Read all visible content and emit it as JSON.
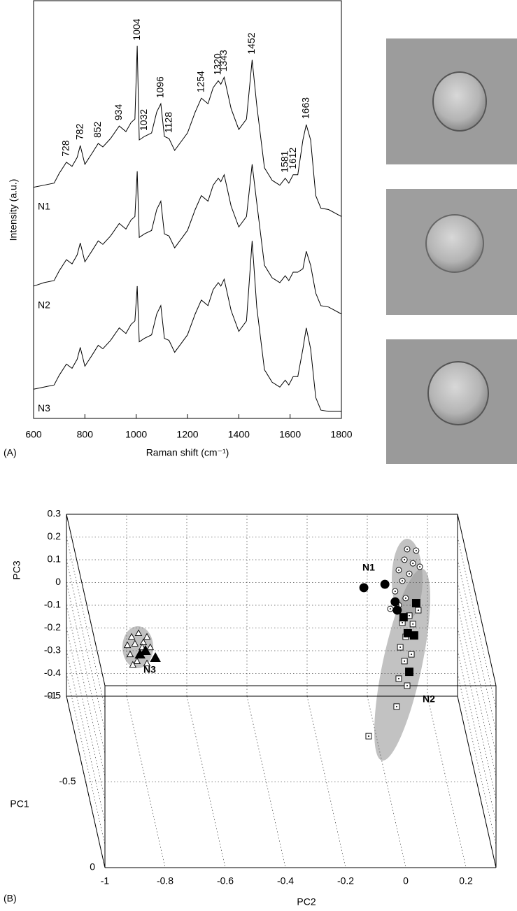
{
  "chart_data": [
    {
      "type": "line",
      "panel_label": "(A)",
      "xlabel": "Raman shift (cm⁻¹)",
      "ylabel": "Intensity (a.u.)",
      "x": [
        600,
        640,
        680,
        700,
        728,
        750,
        770,
        782,
        800,
        830,
        852,
        870,
        900,
        934,
        960,
        980,
        995,
        1004,
        1012,
        1032,
        1060,
        1080,
        1096,
        1110,
        1128,
        1150,
        1180,
        1200,
        1230,
        1254,
        1280,
        1300,
        1320,
        1330,
        1343,
        1370,
        1400,
        1430,
        1452,
        1470,
        1500,
        1530,
        1560,
        1581,
        1595,
        1612,
        1630,
        1650,
        1663,
        1680,
        1700,
        1720,
        1750,
        1800
      ],
      "xlim": [
        600,
        1800
      ],
      "xticks": [
        600,
        800,
        1000,
        1200,
        1400,
        1600,
        1800
      ],
      "ylim": [
        0,
        600
      ],
      "series": [
        {
          "name": "N1",
          "color": "#000000",
          "values": [
            332,
            335,
            338,
            352,
            368,
            362,
            375,
            392,
            365,
            382,
            395,
            390,
            402,
            420,
            412,
            425,
            430,
            535,
            400,
            405,
            410,
            440,
            452,
            405,
            402,
            385,
            400,
            410,
            440,
            460,
            452,
            475,
            485,
            480,
            490,
            445,
            415,
            430,
            515,
            450,
            360,
            342,
            335,
            345,
            338,
            350,
            350,
            400,
            422,
            400,
            320,
            302,
            300,
            290
          ]
        },
        {
          "name": "N2",
          "color": "#000000",
          "values": [
            190,
            195,
            198,
            212,
            228,
            222,
            235,
            252,
            225,
            242,
            255,
            250,
            262,
            280,
            272,
            285,
            290,
            355,
            260,
            265,
            270,
            300,
            312,
            265,
            262,
            245,
            260,
            270,
            300,
            320,
            312,
            335,
            345,
            340,
            350,
            305,
            275,
            290,
            365,
            310,
            220,
            202,
            195,
            205,
            198,
            210,
            210,
            215,
            240,
            220,
            180,
            162,
            160,
            150
          ]
        },
        {
          "name": "N3",
          "color": "#000000",
          "values": [
            42,
            45,
            48,
            62,
            78,
            72,
            85,
            102,
            75,
            92,
            105,
            100,
            112,
            130,
            122,
            135,
            140,
            190,
            110,
            115,
            120,
            150,
            162,
            115,
            112,
            95,
            110,
            120,
            150,
            170,
            162,
            185,
            195,
            190,
            200,
            155,
            125,
            140,
            255,
            160,
            70,
            52,
            45,
            55,
            48,
            60,
            60,
            100,
            130,
            100,
            30,
            12,
            10,
            10
          ]
        }
      ],
      "peaks": [
        728,
        782,
        852,
        934,
        1004,
        1032,
        1096,
        1128,
        1254,
        1320,
        1343,
        1452,
        1581,
        1612,
        1663
      ]
    },
    {
      "type": "scatter3d",
      "panel_label": "(B)",
      "xlabel": "PC2",
      "ylabel": "PC3",
      "zlabel": "PC1",
      "xlim": [
        -1,
        0.3
      ],
      "xticks": [
        -1,
        -0.8,
        -0.6,
        -0.4,
        -0.2,
        0,
        0.2
      ],
      "ylim": [
        -0.5,
        0.3
      ],
      "yticks": [
        0.3,
        0.2,
        0.1,
        0,
        -0.1,
        -0.2,
        -0.3,
        -0.4,
        -0.5
      ],
      "zlim": [
        -1,
        0
      ],
      "zticks": [
        -1,
        -0.5,
        0
      ],
      "grid": true,
      "series": [
        {
          "name": "N1",
          "marker": "circle",
          "color": "#000000",
          "x": [
            -0.037,
            0.033,
            0.067,
            0.074,
            0.107,
            0.137,
            0.098,
            0.126,
            0.149,
            0.079,
            0.114,
            0.091,
            0.067,
            0.102,
            0.051,
            0.079
          ],
          "y": [
            0.128,
            0.143,
            0.066,
            0.029,
            0.297,
            0.291,
            0.251,
            0.235,
            0.22,
            0.205,
            0.189,
            0.158,
            0.112,
            0.082,
            0.035,
            0.051
          ],
          "z": [
            -0.8,
            -0.8,
            -0.8,
            -0.8,
            -0.8,
            -0.8,
            -0.8,
            -0.8,
            -0.8,
            -0.8,
            -0.8,
            -0.8,
            -0.8,
            -0.8,
            -0.8,
            -0.8
          ],
          "filled": [
            true,
            true,
            true,
            true,
            false,
            false,
            false,
            false,
            false,
            false,
            false,
            false,
            false,
            false,
            false,
            false
          ]
        },
        {
          "name": "N2",
          "marker": "square",
          "color": "#000000",
          "x": [
            0.137,
            0.095,
            0.109,
            0.13,
            0.114,
            0.144,
            0.114,
            0.091,
            0.126,
            0.102,
            0.084,
            0.121,
            0.098,
            0.079,
            0.107,
            0.072,
            -0.021
          ],
          "y": [
            0.06,
            -0.002,
            -0.072,
            -0.082,
            -0.242,
            0.029,
            0.005,
            -0.026,
            -0.032,
            -0.088,
            -0.134,
            -0.165,
            -0.195,
            -0.272,
            -0.303,
            -0.395,
            -0.525
          ],
          "z": [
            -0.8,
            -0.8,
            -0.8,
            -0.8,
            -0.8,
            -0.8,
            -0.8,
            -0.8,
            -0.8,
            -0.8,
            -0.8,
            -0.8,
            -0.8,
            -0.8,
            -0.8,
            -0.8,
            -0.8
          ],
          "filled": [
            true,
            true,
            true,
            true,
            true,
            false,
            false,
            false,
            false,
            false,
            false,
            false,
            false,
            false,
            false,
            false,
            false
          ]
        },
        {
          "name": "N3",
          "marker": "triangle",
          "color": "#000000",
          "x": [
            -0.781,
            -0.763,
            -0.73,
            -0.809,
            -0.786,
            -0.758,
            -0.823,
            -0.798,
            -0.77,
            -0.747,
            -0.814,
            -0.791,
            -0.758,
            -0.805,
            -0.774
          ],
          "y": [
            -0.165,
            -0.149,
            -0.18,
            -0.088,
            -0.072,
            -0.088,
            -0.125,
            -0.118,
            -0.112,
            -0.134,
            -0.165,
            -0.195,
            -0.205,
            -0.211,
            -0.134
          ],
          "z": [
            -0.8,
            -0.8,
            -0.8,
            -0.8,
            -0.8,
            -0.8,
            -0.8,
            -0.8,
            -0.8,
            -0.8,
            -0.8,
            -0.8,
            -0.8,
            -0.8,
            -0.8
          ],
          "filled": [
            true,
            true,
            true,
            false,
            false,
            false,
            false,
            false,
            false,
            false,
            false,
            false,
            false,
            false,
            false
          ]
        }
      ]
    }
  ]
}
